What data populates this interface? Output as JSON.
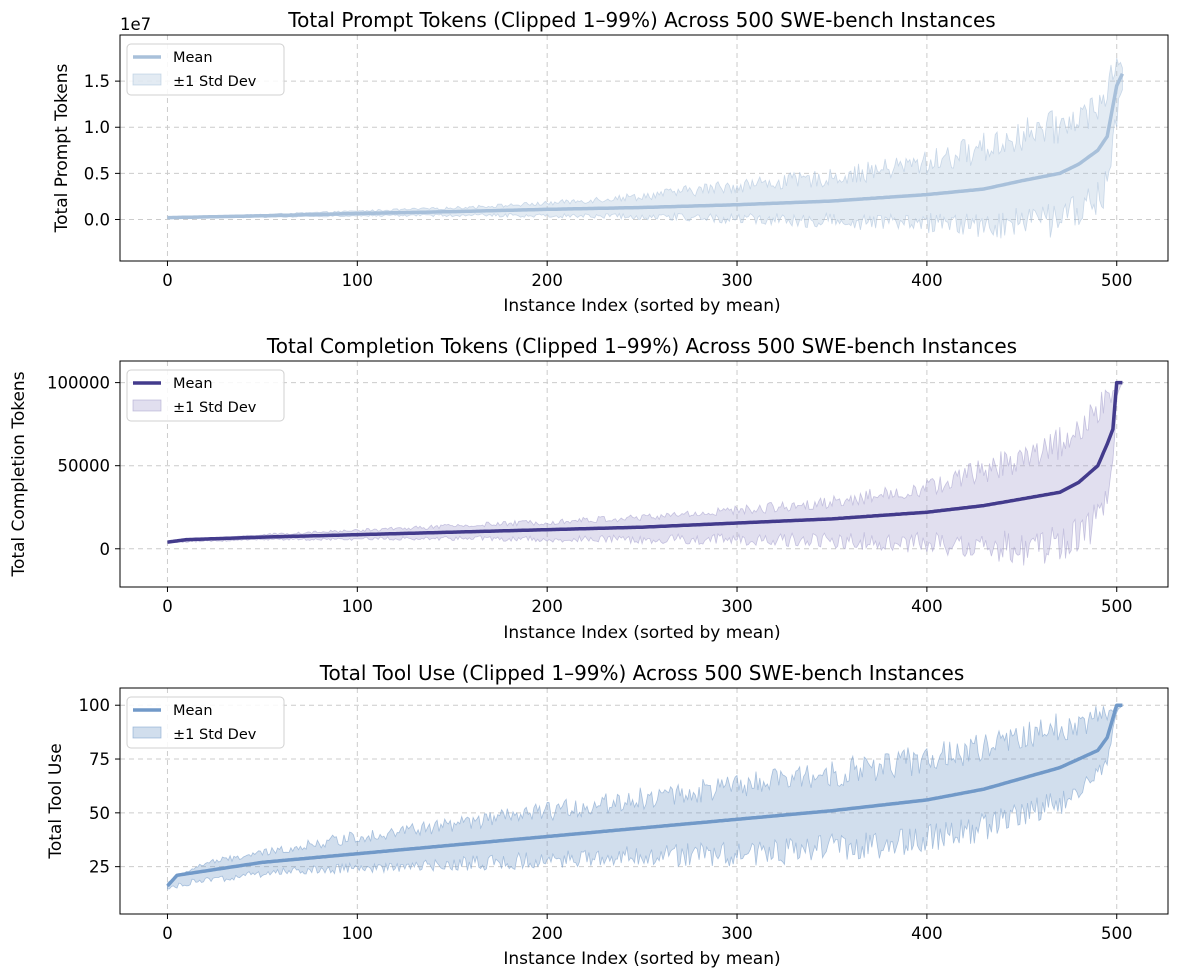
{
  "chart_data": [
    {
      "type": "area",
      "title": "Total Prompt Tokens (Clipped 1–99%) Across 500 SWE-bench Instances",
      "xlabel": "Instance Index (sorted by mean)",
      "ylabel": "Total Prompt Tokens",
      "y_offset_text": "1e7",
      "xlim": [
        -25,
        527
      ],
      "ylim": [
        -0.45,
        2.0
      ],
      "xticks": [
        0,
        100,
        200,
        300,
        400,
        500
      ],
      "xtick_labels": [
        "0",
        "100",
        "200",
        "300",
        "400",
        "500"
      ],
      "yticks": [
        0,
        0.5,
        1.0,
        1.5
      ],
      "ytick_labels": [
        "0.0",
        "0.5",
        "1.0",
        "1.5"
      ],
      "grid": true,
      "legend_position": "top-left",
      "color": "#a8c0da",
      "series": [
        {
          "name": "Mean",
          "kind": "line",
          "x": [
            0,
            50,
            100,
            150,
            200,
            250,
            300,
            350,
            400,
            430,
            450,
            470,
            480,
            490,
            495,
            500,
            503
          ],
          "values": [
            0.02,
            0.04,
            0.065,
            0.085,
            0.11,
            0.13,
            0.16,
            0.2,
            0.27,
            0.33,
            0.42,
            0.5,
            0.6,
            0.75,
            0.9,
            1.45,
            1.58
          ]
        },
        {
          "name": "±1 Std Dev",
          "kind": "band",
          "upper_x": [
            0,
            50,
            100,
            150,
            200,
            250,
            300,
            350,
            400,
            430,
            450,
            470,
            480,
            490,
            495,
            500,
            503
          ],
          "upper": [
            0.03,
            0.06,
            0.1,
            0.14,
            0.2,
            0.3,
            0.45,
            0.55,
            0.75,
            0.95,
            1.1,
            1.2,
            1.3,
            1.4,
            1.6,
            1.8,
            1.7
          ],
          "lower_x": [
            0,
            50,
            100,
            150,
            200,
            250,
            300,
            350,
            400,
            430,
            450,
            470,
            480,
            490,
            495,
            500,
            503
          ],
          "lower": [
            0.01,
            0.02,
            0.03,
            0.03,
            0.02,
            0.0,
            -0.05,
            -0.1,
            -0.15,
            -0.2,
            -0.22,
            -0.2,
            -0.1,
            0.0,
            0.2,
            1.0,
            1.4
          ]
        }
      ]
    },
    {
      "type": "area",
      "title": "Total Completion Tokens (Clipped 1–99%) Across 500 SWE-bench Instances",
      "xlabel": "Instance Index (sorted by mean)",
      "ylabel": "Total Completion Tokens",
      "xlim": [
        -25,
        527
      ],
      "ylim": [
        -23000,
        113000
      ],
      "xticks": [
        0,
        100,
        200,
        300,
        400,
        500
      ],
      "xtick_labels": [
        "0",
        "100",
        "200",
        "300",
        "400",
        "500"
      ],
      "yticks": [
        0,
        50000,
        100000
      ],
      "ytick_labels": [
        "0",
        "50000",
        "100000"
      ],
      "grid": true,
      "legend_position": "top-left",
      "color": "#433b8c",
      "band_color": "#a39ccc",
      "series": [
        {
          "name": "Mean",
          "kind": "line",
          "x": [
            0,
            10,
            50,
            100,
            150,
            200,
            250,
            300,
            350,
            400,
            430,
            450,
            470,
            480,
            490,
            495,
            498,
            500,
            503
          ],
          "values": [
            4000,
            5500,
            7000,
            8500,
            10000,
            11500,
            13000,
            15500,
            18000,
            22000,
            26000,
            30000,
            34000,
            40000,
            50000,
            63000,
            72000,
            100000,
            100000
          ]
        },
        {
          "name": "±1 Std Dev",
          "kind": "band",
          "upper_x": [
            0,
            50,
            100,
            150,
            200,
            250,
            300,
            350,
            400,
            430,
            450,
            470,
            480,
            490,
            495,
            498,
            500,
            503
          ],
          "upper": [
            4500,
            9000,
            12000,
            15000,
            18000,
            21000,
            26000,
            32000,
            42000,
            55000,
            65000,
            75000,
            85000,
            95000,
            100000,
            100000,
            100000,
            100000
          ],
          "lower_x": [
            0,
            50,
            100,
            150,
            200,
            250,
            300,
            350,
            400,
            430,
            450,
            470,
            480,
            490,
            495,
            498,
            500,
            503
          ],
          "lower": [
            3500,
            5000,
            5000,
            5000,
            4000,
            3000,
            2000,
            0,
            -3000,
            -8000,
            -12000,
            -8000,
            -2000,
            5000,
            20000,
            40000,
            90000,
            100000
          ]
        }
      ]
    },
    {
      "type": "area",
      "title": "Total Tool Use (Clipped 1–99%) Across 500 SWE-bench Instances",
      "xlabel": "Instance Index (sorted by mean)",
      "ylabel": "Total Tool Use",
      "xlim": [
        -25,
        527
      ],
      "ylim": [
        3,
        108
      ],
      "xticks": [
        0,
        100,
        200,
        300,
        400,
        500
      ],
      "xtick_labels": [
        "0",
        "100",
        "200",
        "300",
        "400",
        "500"
      ],
      "yticks": [
        25,
        50,
        75,
        100
      ],
      "ytick_labels": [
        "25",
        "50",
        "75",
        "100"
      ],
      "grid": true,
      "legend_position": "top-left",
      "color": "#7199c8",
      "series": [
        {
          "name": "Mean",
          "kind": "line",
          "x": [
            0,
            5,
            20,
            50,
            100,
            150,
            200,
            250,
            300,
            350,
            400,
            430,
            450,
            470,
            480,
            490,
            495,
            500,
            503
          ],
          "values": [
            16,
            21,
            23,
            27,
            31,
            35,
            39,
            43,
            47,
            51,
            56,
            61,
            66,
            71,
            75,
            79,
            85,
            100,
            100
          ]
        },
        {
          "name": "±1 Std Dev",
          "kind": "band",
          "upper_x": [
            0,
            20,
            50,
            100,
            150,
            200,
            250,
            300,
            350,
            400,
            430,
            450,
            470,
            480,
            490,
            495,
            500,
            503
          ],
          "upper": [
            18,
            28,
            33,
            42,
            48,
            55,
            62,
            68,
            75,
            82,
            87,
            92,
            97,
            98,
            100,
            100,
            100,
            100
          ],
          "lower_x": [
            0,
            20,
            50,
            100,
            150,
            200,
            250,
            300,
            350,
            400,
            430,
            450,
            470,
            480,
            490,
            495,
            500,
            503
          ],
          "lower": [
            14,
            17,
            20,
            22,
            23,
            24,
            25,
            25,
            27,
            30,
            37,
            42,
            48,
            55,
            62,
            72,
            95,
            100
          ]
        }
      ]
    }
  ]
}
